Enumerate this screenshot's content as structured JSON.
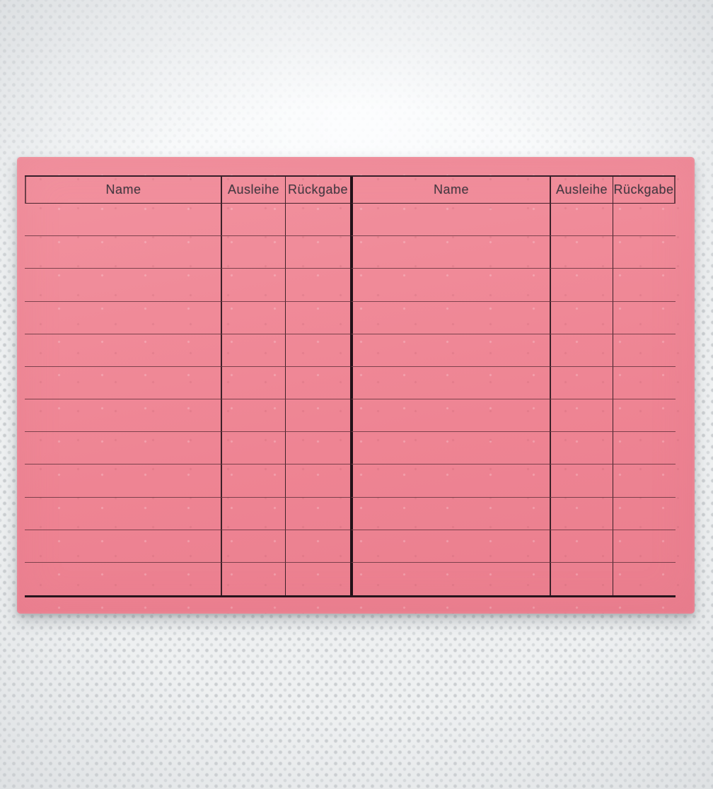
{
  "scene": {
    "description": "Pink library lending card (Leihkarte) lying on white dotted non-woven fabric",
    "colors": {
      "fabric": "#eef0f1",
      "card_pink": "#ef8694",
      "rule_thin": "#522832",
      "rule_dark": "#35202a",
      "center_divider": "#221118",
      "header_text": "#453841"
    }
  },
  "card": {
    "row_count": 12,
    "column_groups": [
      {
        "name_header": "Name",
        "ausleihe_header": "Ausleihe",
        "rueckgabe_header": "Rückgabe"
      },
      {
        "name_header": "Name",
        "ausleihe_header": "Ausleihe",
        "rueckgabe_header": "Rückgabe"
      }
    ]
  }
}
